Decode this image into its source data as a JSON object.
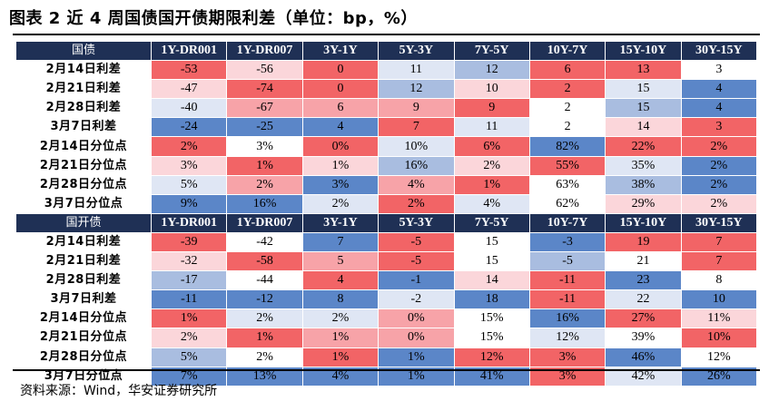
{
  "title": "图表 2  近 4 周国债国开债期限利差（单位：bp，%）",
  "source": "资料来源：Wind，华安证券研究所",
  "columns": [
    "1Y-DR001",
    "1Y-DR007",
    "3Y-1Y",
    "5Y-3Y",
    "7Y-5Y",
    "10Y-7Y",
    "15Y-10Y",
    "30Y-15Y"
  ],
  "colors": {
    "header_bg": "#1f3055",
    "red_strong": "#f26466",
    "red_medium": "#f7a3a8",
    "red_light": "#fbd6da",
    "white": "#ffffff",
    "blue_light": "#dfe6f4",
    "blue_medium": "#a9bde0",
    "blue_strong": "#5b86c8"
  },
  "sections": [
    {
      "name": "国债",
      "rows": [
        {
          "label": "2月14日利差",
          "values": [
            "-53",
            "-56",
            "0",
            "11",
            "12",
            "6",
            "13",
            "3"
          ],
          "shades": [
            "rs",
            "rl",
            "rs",
            "bl",
            "bm",
            "rs",
            "rs",
            "w"
          ]
        },
        {
          "label": "2月21日利差",
          "values": [
            "-47",
            "-74",
            "0",
            "12",
            "10",
            "2",
            "15",
            "4"
          ],
          "shades": [
            "rl",
            "rs",
            "rs",
            "bm",
            "rl",
            "rs",
            "bl",
            "bs"
          ]
        },
        {
          "label": "2月28日利差",
          "values": [
            "-40",
            "-67",
            "6",
            "9",
            "9",
            "2",
            "15",
            "4"
          ],
          "shades": [
            "bl",
            "rm",
            "rm",
            "rm",
            "rs",
            "w",
            "bm",
            "bs"
          ]
        },
        {
          "label": "3月7日利差",
          "values": [
            "-24",
            "-25",
            "4",
            "7",
            "11",
            "2",
            "14",
            "3"
          ],
          "shades": [
            "bs",
            "bs",
            "bs",
            "rs",
            "bl",
            "w",
            "rl",
            "rs"
          ]
        },
        {
          "label": "2月14日分位点",
          "values": [
            "2%",
            "3%",
            "0%",
            "10%",
            "6%",
            "82%",
            "22%",
            "2%"
          ],
          "shades": [
            "rs",
            "w",
            "rs",
            "bl",
            "rs",
            "bs",
            "rs",
            "rs"
          ]
        },
        {
          "label": "2月21日分位点",
          "values": [
            "3%",
            "1%",
            "1%",
            "16%",
            "2%",
            "55%",
            "35%",
            "2%"
          ],
          "shades": [
            "rl",
            "rs",
            "rl",
            "bm",
            "rl",
            "rs",
            "bl",
            "bs"
          ]
        },
        {
          "label": "2月28日分位点",
          "values": [
            "5%",
            "2%",
            "3%",
            "4%",
            "1%",
            "63%",
            "38%",
            "2%"
          ],
          "shades": [
            "bl",
            "rm",
            "bs",
            "rm",
            "rs",
            "w",
            "bm",
            "bs"
          ]
        },
        {
          "label": "3月7日分位点",
          "values": [
            "9%",
            "16%",
            "2%",
            "2%",
            "4%",
            "62%",
            "29%",
            "2%"
          ],
          "shades": [
            "bs",
            "bs",
            "bl",
            "rs",
            "bl",
            "w",
            "rl",
            "rl"
          ]
        }
      ]
    },
    {
      "name": "国开债",
      "rows": [
        {
          "label": "2月14日利差",
          "values": [
            "-39",
            "-42",
            "7",
            "-5",
            "15",
            "-3",
            "19",
            "7"
          ],
          "shades": [
            "rs",
            "w",
            "bs",
            "rs",
            "w",
            "bs",
            "rs",
            "rs"
          ]
        },
        {
          "label": "2月21日利差",
          "values": [
            "-32",
            "-58",
            "5",
            "-5",
            "15",
            "-5",
            "21",
            "7"
          ],
          "shades": [
            "rl",
            "rs",
            "rm",
            "rs",
            "w",
            "bm",
            "w",
            "rs"
          ]
        },
        {
          "label": "2月28日利差",
          "values": [
            "-17",
            "-44",
            "4",
            "-1",
            "14",
            "-11",
            "23",
            "8"
          ],
          "shades": [
            "bm",
            "w",
            "rs",
            "bs",
            "rl",
            "rs",
            "bs",
            "w"
          ]
        },
        {
          "label": "3月7日利差",
          "values": [
            "-11",
            "-12",
            "8",
            "-2",
            "18",
            "-11",
            "22",
            "10"
          ],
          "shades": [
            "bs",
            "bs",
            "bs",
            "bl",
            "bs",
            "rs",
            "bl",
            "bs"
          ]
        },
        {
          "label": "2月14日分位点",
          "values": [
            "1%",
            "2%",
            "2%",
            "0%",
            "15%",
            "16%",
            "27%",
            "11%"
          ],
          "shades": [
            "rs",
            "bl",
            "bl",
            "rm",
            "w",
            "bs",
            "rs",
            "rl"
          ]
        },
        {
          "label": "2月21日分位点",
          "values": [
            "2%",
            "1%",
            "1%",
            "0%",
            "15%",
            "12%",
            "39%",
            "10%"
          ],
          "shades": [
            "rl",
            "rs",
            "rm",
            "rm",
            "w",
            "bl",
            "w",
            "rs"
          ]
        },
        {
          "label": "2月28日分位点",
          "values": [
            "5%",
            "2%",
            "1%",
            "1%",
            "12%",
            "3%",
            "46%",
            "12%"
          ],
          "shades": [
            "bm",
            "w",
            "rs",
            "bs",
            "rs",
            "rs",
            "bs",
            "w"
          ]
        },
        {
          "label": "3月7日分位点",
          "values": [
            "7%",
            "13%",
            "4%",
            "1%",
            "41%",
            "3%",
            "42%",
            "26%"
          ],
          "shades": [
            "bs",
            "bs",
            "bs",
            "bs",
            "bs",
            "rs",
            "bl",
            "bs"
          ]
        }
      ]
    }
  ]
}
